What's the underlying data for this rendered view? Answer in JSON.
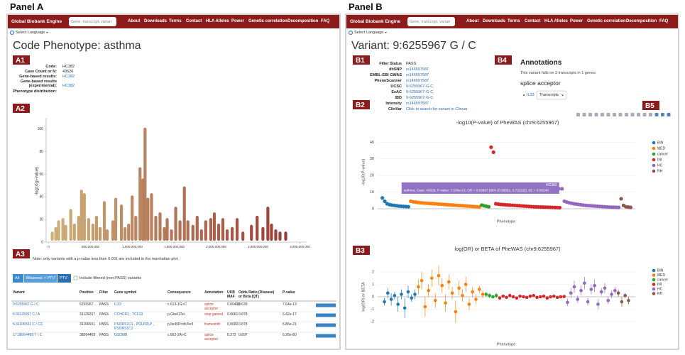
{
  "panel_a": {
    "label": "Panel A",
    "nav": {
      "brand": "Global Biobank Engine",
      "search_placeholder": "Gene, transcript, varian",
      "links": [
        "About",
        "Downloads",
        "Terms",
        "Contact",
        "HLA Alleles",
        "Power",
        "Genetic correlation",
        "Decomposition",
        "FAQ"
      ]
    },
    "language": "Select Language",
    "title": "Code Phenotype: asthma",
    "tags": [
      "A1",
      "A2",
      "A3"
    ],
    "info": [
      {
        "label": "Code:",
        "value": "HC382"
      },
      {
        "label": "Case Count or N:",
        "value": "43626"
      },
      {
        "label": "Gene-based results:",
        "value": "HC382",
        "link": true
      },
      {
        "label": "Gene-based results (experimental):",
        "value": "HC382",
        "link": true
      },
      {
        "label": "Phenotype distribution:"
      }
    ],
    "manhattan": {
      "y_label": "-log10(p-value)",
      "ylim": [
        0,
        110
      ],
      "yticks": [
        0,
        20,
        40,
        60,
        80,
        100
      ],
      "xlim": [
        -30000000,
        3080000000
      ],
      "xticks": [
        0,
        {
          "value": 500000000,
          "label": "500,000,000"
        },
        {
          "value": 1000000000,
          "label": "1,000,000,000"
        },
        {
          "value": 1500000000,
          "label": "1,500,000,000"
        },
        {
          "value": 2000000000,
          "label": "2,000,000,000"
        },
        {
          "value": 2500000000,
          "label": "2,500,000,000"
        },
        {
          "value": 3000000000,
          "label": "3,000,000,000"
        }
      ],
      "color_start": "#c9ad6e",
      "color_end": "#8b1d1d",
      "x": [
        43000000,
        85000000,
        119000000,
        170000000,
        204000000,
        264000000,
        307000000,
        358000000,
        392000000,
        426000000,
        477000000,
        529000000,
        571000000,
        614000000,
        665000000,
        699000000,
        767000000,
        801000000,
        869000000,
        912000000,
        955000000,
        997000000,
        1040000000,
        1091000000,
        1125000000,
        1151000000,
        1185000000,
        1228000000,
        1279000000,
        1330000000,
        1381000000,
        1415000000,
        1466000000,
        1517000000,
        1568000000,
        1620000000,
        1662000000,
        1722000000,
        1773000000,
        1824000000,
        1875000000,
        1935000000,
        1978000000,
        2029000000,
        2080000000,
        2131000000,
        2191000000,
        2250000000,
        2319000000,
        2421000000,
        2489000000,
        2558000000,
        2617000000,
        2660000000,
        2711000000,
        2762000000,
        2830000000
      ],
      "y": [
        8,
        12,
        18,
        20,
        14,
        28,
        15,
        22,
        45,
        42,
        20,
        15,
        22,
        12,
        35,
        10,
        18,
        38,
        32,
        12,
        15,
        40,
        22,
        65,
        55,
        100,
        38,
        42,
        22,
        25,
        12,
        20,
        10,
        30,
        18,
        48,
        18,
        14,
        22,
        10,
        18,
        20,
        25,
        15,
        20,
        10,
        12,
        20,
        8,
        14,
        22,
        12,
        30,
        15,
        10,
        8,
        8
      ]
    },
    "note": "Note: only variants with a p-value less than 0.001 are included in the manhattan plot.",
    "filters": [
      "All",
      "Missense + PTV",
      "PTV"
    ],
    "checkbox_label": "Include filtered (non-PASS) variants",
    "table": {
      "header": [
        "Variant",
        "Position",
        "Filter",
        "Gene symbol",
        "Consequence",
        "Annotation",
        "UKB MAF",
        "Odds Ratio (Disease) or Beta (QT)",
        "P-value"
      ],
      "rows": [
        [
          "9:6255967 G / C",
          "6255967",
          "PASS",
          "IL33",
          "c.613-1G>C",
          "splice acceptor",
          "0.00498",
          "0.639",
          "7.64e-13"
        ],
        [
          "6:31129207 C / A",
          "31129207",
          "PASS",
          "CCHCR1 , TCF19",
          "p.Glu41Ter",
          "stop gained",
          "0.0661",
          "0.878",
          "6.42e-17"
        ],
        [
          "6:31106501 C / CC",
          "31106501",
          "PASS",
          "PSORS1C1 , POLR2LP , PSORS1C2",
          "p.Ile45ProfsTer3",
          "frameshift",
          "0.0660",
          "0.878",
          "6.86e-21"
        ],
        [
          "17:38064469 T / C",
          "38064469",
          "PASS",
          "GSDMB",
          "c.662-2A>C",
          "splice acceptor",
          "0.372",
          "0.897",
          "6.26e-80"
        ]
      ]
    }
  },
  "panel_b": {
    "label": "Panel B",
    "nav": {
      "brand": "Global Biobank Engine",
      "search_placeholder": "Gene, transcript, varian",
      "links": [
        "About",
        "Downloads",
        "Terms",
        "Contact",
        "HLA Alleles",
        "Power",
        "Genetic correlation",
        "Decomposition",
        "FAQ"
      ]
    },
    "language": "Select Language",
    "title": "Variant: 9:6255967 G / C",
    "tags": [
      "B1",
      "B2",
      "B3",
      "B4",
      "B5"
    ],
    "info": [
      {
        "label": "Filter Status",
        "value": "PASS"
      },
      {
        "label": "dbSNP",
        "value": "rs146597587",
        "link": true
      },
      {
        "label": "EMBL-EBI GWAS",
        "value": "rs146597587",
        "link": true
      },
      {
        "label": "PhenoScanner",
        "value": "rs146597587",
        "link": true
      },
      {
        "label": "UCSC",
        "value": "9-6255967-G-C",
        "link": true
      },
      {
        "label": "ExAC",
        "value": "9-6255967-G-C",
        "link": true
      },
      {
        "label": "IBD",
        "value": "9-6255967-G-C",
        "link": true
      },
      {
        "label": "Intensity",
        "value": "rs146597587",
        "link": true
      },
      {
        "label": "ClinVar",
        "value": "Click to search for variant in Clinvar",
        "link": true
      }
    ],
    "annotations": {
      "title": "Annotations",
      "description": "This variant falls on 3 transcripts in 1 genes:",
      "consequence": "splice acceptor",
      "gene": "IL33",
      "button": "Transcripts"
    },
    "phewas_p": {
      "title": "-log10(P-value) of PheWAS (chr9:6255967)",
      "y_label": "-log10(P-value)",
      "x_label": "Phenotype",
      "ylim": [
        0,
        44
      ],
      "yticks": [
        0,
        10,
        20,
        30,
        40
      ],
      "series": [
        {
          "name": "BIN",
          "color": "#1f77b4",
          "values": [
            6.5,
            4.5,
            3,
            2.5,
            2.2,
            2,
            1.8,
            1.6,
            1.5,
            1.4,
            1.3,
            1.2
          ]
        },
        {
          "name": "MED",
          "color": "#ff7f0e",
          "values": [
            4.5,
            4.2,
            4,
            3.8,
            3.6,
            3.5,
            3.4,
            3.3,
            3.2,
            3.1,
            3,
            2.9,
            2.8,
            2.7,
            2.6,
            2.5,
            2.4,
            2.3,
            2.2,
            2.1,
            2,
            1.9,
            1.8,
            1.7,
            1.6,
            1.5,
            1.4,
            1.3,
            1.2,
            1.1
          ]
        },
        {
          "name": "cancer",
          "color": "#2ca02c",
          "values": [
            2.2,
            1.8,
            1.5,
            1.2
          ]
        },
        {
          "name": "INI",
          "color": "#d62728",
          "values": [
            37,
            34,
            3,
            2.8,
            2.6,
            2.5,
            2.4,
            2.3,
            2.2,
            2.1,
            2,
            1.9,
            1.8,
            1.7,
            1.6,
            1.5,
            1.4,
            1.3,
            1.2,
            1.15,
            1.1,
            1.05,
            1,
            0.95,
            0.9,
            0.85,
            0.8,
            0.75,
            0.7,
            0.65
          ]
        },
        {
          "name": "HC",
          "color": "#9467bd",
          "values": [
            12,
            4.5,
            4,
            3.6,
            3.3,
            3,
            2.8,
            2.6,
            2.4,
            2.2,
            2,
            1.9,
            1.8,
            1.7,
            1.6,
            1.5,
            1.4,
            1.3,
            1.2,
            1.1,
            1,
            0.95,
            0.9,
            0.85,
            0.8
          ]
        },
        {
          "name": "RH",
          "color": "#8c564b",
          "values": [
            6,
            2,
            1.2,
            1,
            0.8
          ]
        }
      ],
      "tooltip": {
        "title": "HC382",
        "text": "asthma, Case: 43626, P-value: 7.638e-13, OR = 0.63897 (95% [0.56551, 0.72222]), SE = 0.06248"
      }
    },
    "phewas_beta": {
      "title": "log(OR) or BETA of PheWAS (chr9:6255967)",
      "y_label": "log(OR) or BETA",
      "x_label": "Phenotype",
      "ylim": [
        -2.8,
        2.8
      ],
      "yticks": [
        -2,
        -1,
        0,
        1,
        2
      ],
      "series": [
        {
          "name": "BIN",
          "color": "#1f77b4",
          "values": [
            -0.4,
            0.3,
            -0.2,
            0.1,
            -0.6,
            0.2,
            -0.9,
            0.4,
            -0.1,
            0.2
          ],
          "errors": [
            0.3,
            0.4,
            0.5,
            0.3,
            0.6,
            0.4,
            0.8,
            0.5,
            0.3,
            0.4
          ]
        },
        {
          "name": "MED",
          "color": "#ff7f0e",
          "values": [
            0.8,
            1.3,
            -0.8,
            0.5,
            1.5,
            -0.3,
            1.7,
            0.9,
            -0.5,
            1.2,
            0.3,
            -1.2,
            0.7,
            0.1,
            1.0,
            -0.6,
            0.4,
            -0.2,
            0.6,
            0.2
          ],
          "errors": [
            0.6,
            0.7,
            0.8,
            0.5,
            0.7,
            0.6,
            0.8,
            0.6,
            0.7,
            0.6,
            0.5,
            0.9,
            0.6,
            0.5,
            0.6,
            0.5,
            0.4,
            0.4,
            0.3,
            0.3
          ]
        },
        {
          "name": "cancer",
          "color": "#2ca02c",
          "values": [
            0.2,
            0.1,
            0,
            0.1
          ],
          "errors": [
            0.2,
            0.2,
            0.1,
            0.2
          ]
        },
        {
          "name": "INI",
          "color": "#d62728",
          "values": [
            -0.1,
            0.05,
            -0.05,
            0.1,
            0,
            -0.1,
            0.05,
            0,
            -0.05,
            0.05,
            0.1,
            -0.05,
            0,
            0.05,
            -0.1,
            0,
            0.05,
            -0.05,
            0,
            0.02
          ],
          "errors": [
            0.15,
            0.12,
            0.1,
            0.15,
            0.1,
            0.12,
            0.1,
            0.12,
            0.1,
            0.15,
            0.12,
            0.1,
            0.1,
            0.12,
            0.15,
            0.1,
            0.1,
            0.12,
            0.1,
            0.1
          ]
        },
        {
          "name": "HC",
          "color": "#9467bd",
          "values": [
            -0.45,
            0.3,
            0.8,
            -0.2,
            0.5,
            1.1,
            -0.4,
            0.6,
            0.9,
            -0.6,
            0.4,
            0.7,
            -0.3,
            0.2,
            0.5
          ],
          "errors": [
            0.3,
            0.4,
            0.5,
            0.3,
            0.4,
            0.5,
            0.3,
            0.4,
            0.5,
            0.4,
            0.3,
            0.4,
            0.3,
            0.3,
            0.3
          ]
        },
        {
          "name": "RH",
          "color": "#8c564b",
          "values": [
            0.3,
            -0.4,
            0.1,
            -0.3
          ],
          "errors": [
            0.3,
            0.4,
            0.2,
            0.3
          ]
        }
      ]
    }
  }
}
